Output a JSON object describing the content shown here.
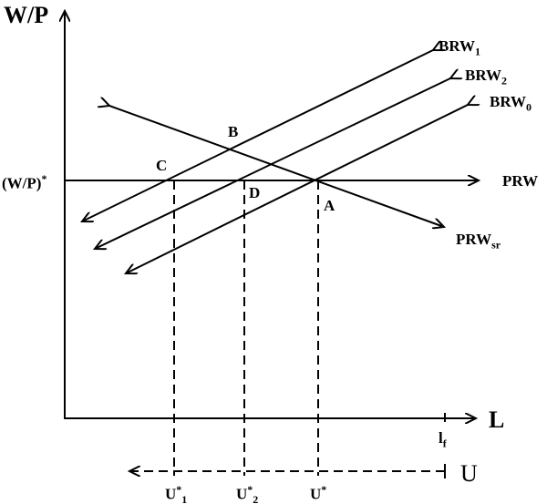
{
  "axes": {
    "y_label": "W/P",
    "x_label": "L",
    "u_label": "U",
    "y_tick": "(W/P)",
    "y_tick_sup": "*",
    "x_tick": "l",
    "x_tick_sub": "f"
  },
  "curves": {
    "brw1": {
      "base": "BRW",
      "sub": "1"
    },
    "brw2": {
      "base": "BRW",
      "sub": "2"
    },
    "brw0": {
      "base": "BRW",
      "sub": "0"
    },
    "prw": {
      "base": "PRW"
    },
    "prwsr": {
      "base": "PRW",
      "sub": "sr"
    }
  },
  "points": {
    "a": "A",
    "b": "B",
    "c": "C",
    "d": "D"
  },
  "u_ticks": [
    {
      "base": "U",
      "sup": "*",
      "sub": "1"
    },
    {
      "base": "U",
      "sup": "*",
      "sub": "2"
    },
    {
      "base": "U",
      "sup": "*",
      "sub": ""
    }
  ]
}
